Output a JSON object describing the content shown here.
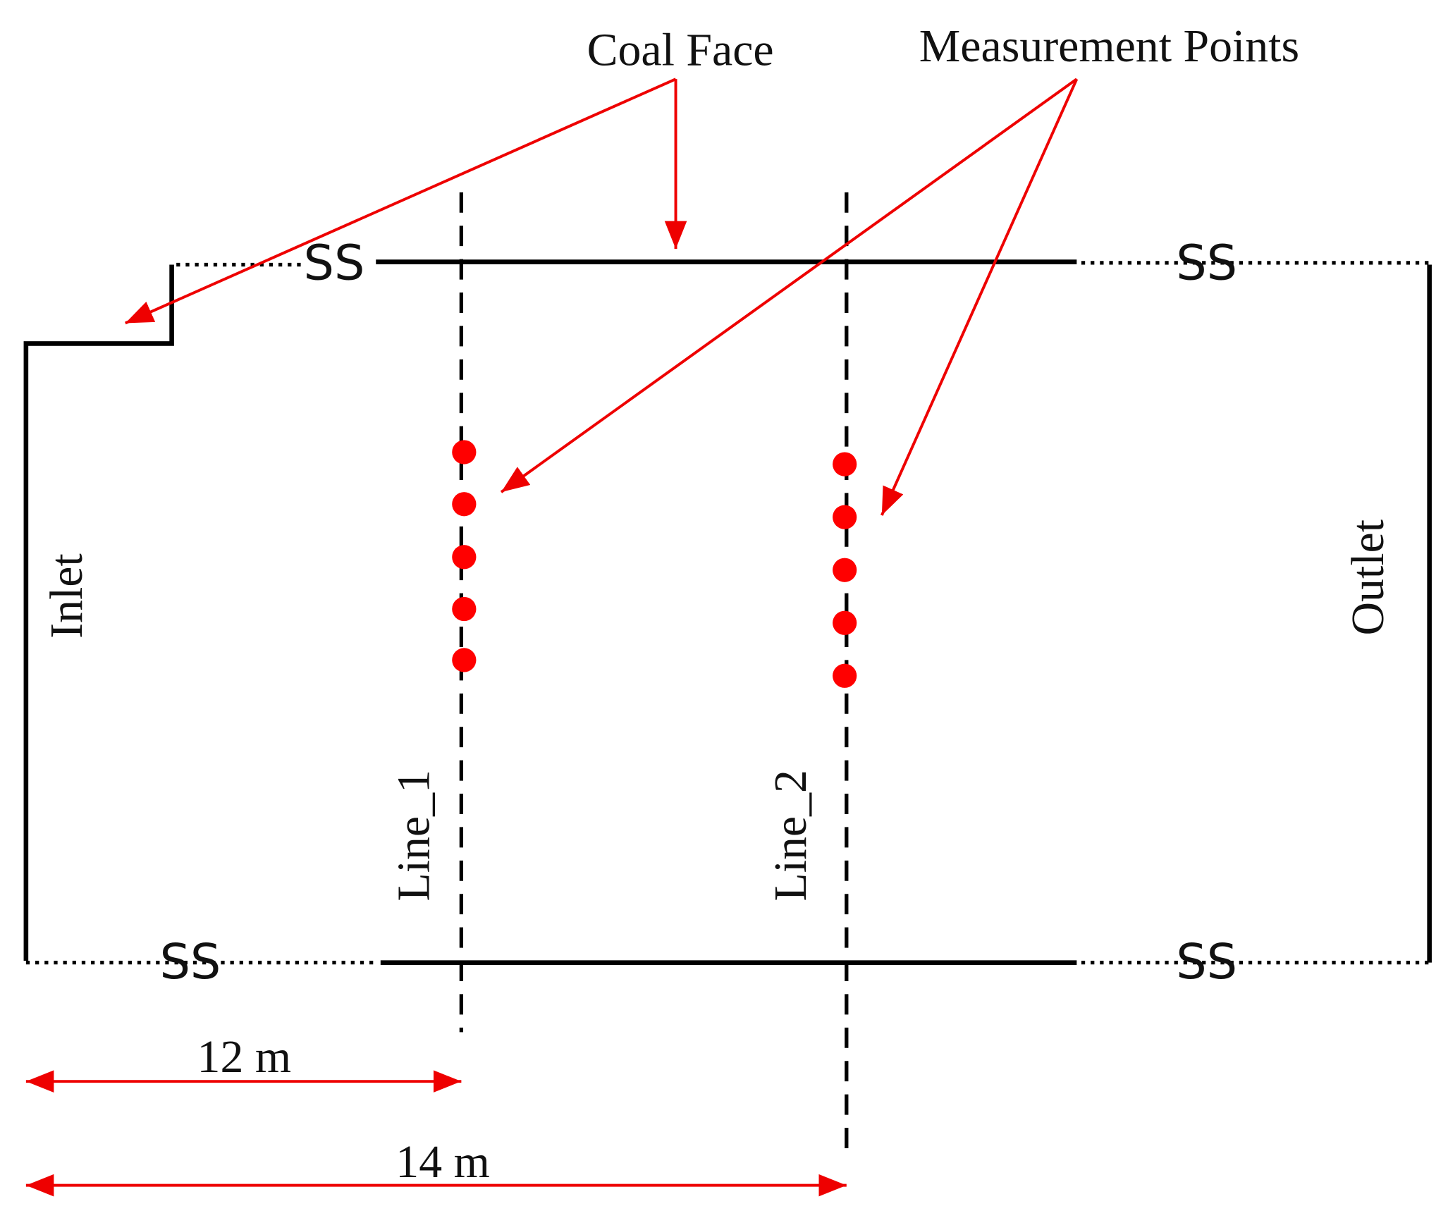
{
  "labels": {
    "coal_face": "Coal Face",
    "measurement_points": "Measurement Points",
    "inlet": "Inlet",
    "outlet": "Outlet",
    "line_1": "Line_1",
    "line_2": "Line_2"
  },
  "dimensions": [
    "12 m",
    "14 m"
  ],
  "break_symbols": [
    "SS",
    "SS",
    "SS",
    "SS"
  ]
}
